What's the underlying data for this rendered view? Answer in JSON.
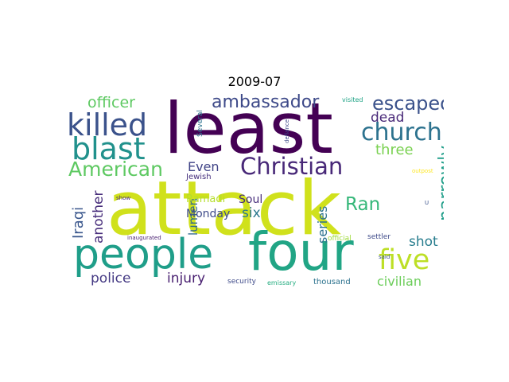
{
  "figure": {
    "title": "2009-07"
  },
  "wordcloud": {
    "words": [
      {
        "text": "attack",
        "color": "#d0e11c"
      },
      {
        "text": "least",
        "color": "#440154"
      },
      {
        "text": "four",
        "color": "#21a585"
      },
      {
        "text": "people",
        "color": "#1f9e89"
      },
      {
        "text": "killed",
        "color": "#3b528b"
      },
      {
        "text": "blast",
        "color": "#21918c"
      },
      {
        "text": "Christian",
        "color": "#482878"
      },
      {
        "text": "church",
        "color": "#2c728e"
      },
      {
        "text": "five",
        "color": "#bddf26"
      },
      {
        "text": "American",
        "color": "#5ec962"
      },
      {
        "text": "escaped",
        "color": "#3b528b"
      },
      {
        "text": "ambassador",
        "color": "#3e4a89"
      },
      {
        "text": "officer",
        "color": "#5ec962"
      },
      {
        "text": "narrowly",
        "color": "#1f9e89"
      },
      {
        "text": "Ran",
        "color": "#35b779"
      },
      {
        "text": "three",
        "color": "#7ad151"
      },
      {
        "text": "dead",
        "color": "#482878"
      },
      {
        "text": "Iraqi",
        "color": "#39568c"
      },
      {
        "text": "another",
        "color": "#472d7b"
      },
      {
        "text": "Even",
        "color": "#414487"
      },
      {
        "text": "lumen",
        "color": "#31688e"
      },
      {
        "text": "six",
        "color": "#2a788e"
      },
      {
        "text": "Soul",
        "color": "#472d7b"
      },
      {
        "text": "series",
        "color": "#2c728e"
      },
      {
        "text": "Monday",
        "color": "#3e4a89"
      },
      {
        "text": "Ramadi",
        "color": "#b5de2b"
      },
      {
        "text": "shot",
        "color": "#287d8e"
      },
      {
        "text": "police",
        "color": "#443983"
      },
      {
        "text": "injury",
        "color": "#481f70"
      },
      {
        "text": "civilian",
        "color": "#6ccd5a"
      },
      {
        "text": "Jewish",
        "color": "#46307e"
      },
      {
        "text": "Several",
        "color": "#2c728e"
      },
      {
        "text": "defiance",
        "color": "#3e4a89"
      },
      {
        "text": "visited",
        "color": "#20a386"
      },
      {
        "text": "outpost",
        "color": "#fde725"
      },
      {
        "text": "show",
        "color": "#482878"
      },
      {
        "text": "inaugurated",
        "color": "#481f70"
      },
      {
        "text": "official",
        "color": "#9fda3a"
      },
      {
        "text": "settler",
        "color": "#3e4a89"
      },
      {
        "text": "said",
        "color": "#3b528b"
      },
      {
        "text": "security",
        "color": "#3e4a89"
      },
      {
        "text": "emissary",
        "color": "#26ad81"
      },
      {
        "text": "thousand",
        "color": "#2c728e"
      },
      {
        "text": "U",
        "color": "#3b528b"
      }
    ]
  }
}
